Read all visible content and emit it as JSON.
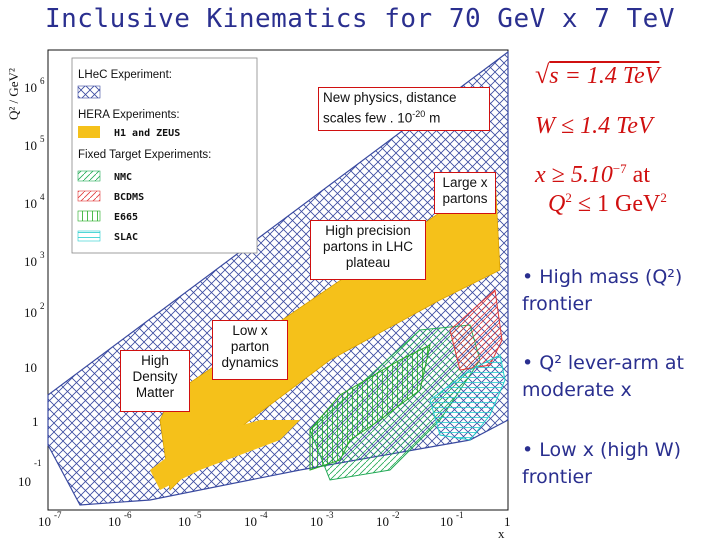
{
  "title": "Inclusive Kinematics for 70 GeV x 7 TeV",
  "axes": {
    "ylabel": "Q² / GeV²",
    "xlabel": "x",
    "x_ticks": [
      {
        "base": "10",
        "exp": "-7"
      },
      {
        "base": "10",
        "exp": "-6"
      },
      {
        "base": "10",
        "exp": "-5"
      },
      {
        "base": "10",
        "exp": "-4"
      },
      {
        "base": "10",
        "exp": "-3"
      },
      {
        "base": "10",
        "exp": "-2"
      },
      {
        "base": "10",
        "exp": "-1"
      },
      {
        "base": "1",
        "exp": ""
      }
    ],
    "y_ticks": [
      {
        "base": "10",
        "exp": "6"
      },
      {
        "base": "10",
        "exp": "5"
      },
      {
        "base": "10",
        "exp": "4"
      },
      {
        "base": "10",
        "exp": "3"
      },
      {
        "base": "10",
        "exp": "2"
      },
      {
        "base": "10",
        "exp": ""
      },
      {
        "base": "1",
        "exp": ""
      },
      {
        "base": "10",
        "exp": "-1"
      }
    ]
  },
  "legend": {
    "lhec": "LHeC Experiment:",
    "hera": "HERA Experiments:",
    "h1zeus": "H1 and ZEUS",
    "fixed": "Fixed Target Experiments:",
    "items": [
      "NMC",
      "BCDMS",
      "E665",
      "SLAC"
    ]
  },
  "callouts": {
    "new_physics": "New physics, distance scales few . 10",
    "new_physics_exp": "-20",
    "new_physics_unit": " m",
    "large_x": [
      "Large x",
      "partons"
    ],
    "high_precision": [
      "High precision",
      "partons in LHC",
      "plateau"
    ],
    "low_x": [
      "Low x",
      "parton",
      "dynamics"
    ],
    "high_density": [
      "High",
      "Density",
      "Matter"
    ]
  },
  "formulas": {
    "sqrt_s": "s = 1.4  TeV",
    "w": "W ≤ 1.4  TeV",
    "x": "x ≥ 5.10",
    "x_exp": "−7",
    "x_at": "  at",
    "q2": "Q",
    "q2_exp": "2",
    "q2_rest": " ≤ 1  GeV",
    "q2_unit_exp": "2"
  },
  "bullets": {
    "b1": "• High mass (Q²)  frontier",
    "b2": "• Q² lever-arm at moderate x",
    "b3": "• Low x (high W) frontier"
  },
  "colors": {
    "title": "#2a2f8f",
    "hera": "#f5c11a",
    "lhec": "#3a4aa0",
    "callout_border": "#d01010",
    "nmc": "#22aa55",
    "bcdms": "#e03a3a",
    "e665": "#22aa22",
    "slac": "#22cccc"
  }
}
